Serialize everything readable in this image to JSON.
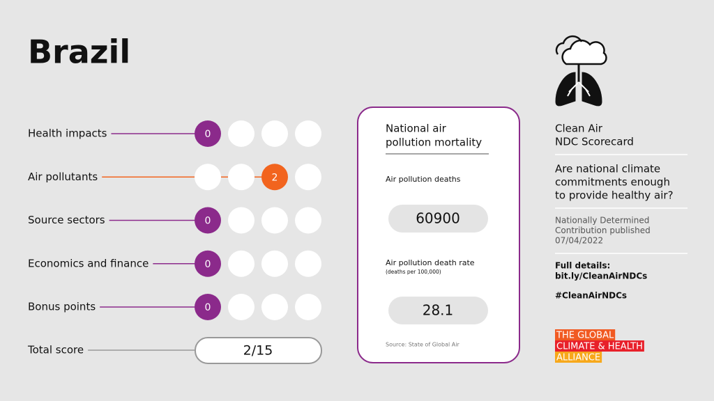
{
  "header": {
    "title": "Brazil"
  },
  "rows": [
    {
      "label": "Health impacts",
      "score": 0,
      "color": "#8b2a8b"
    },
    {
      "label": "Air pollutants",
      "score": 2,
      "color": "#f2641e"
    },
    {
      "label": "Source sectors",
      "score": 0,
      "color": "#8b2a8b"
    },
    {
      "label": "Economics and finance",
      "score": 0,
      "color": "#8b2a8b"
    },
    {
      "label": "Bonus points",
      "score": 0,
      "color": "#8b2a8b"
    }
  ],
  "total": {
    "label": "Total score",
    "value": "2/15"
  },
  "card": {
    "title": [
      "National air",
      "pollution mortality"
    ],
    "deaths_label": "Air pollution deaths",
    "deaths": 60900,
    "rate_label": "Air pollution death rate",
    "rate_unit": "(deaths per 100,000)",
    "rate": 28.1,
    "source": "Source: State of Global Air"
  },
  "sidebar": {
    "heading": [
      "Clean Air",
      "NDC Scorecard"
    ],
    "question": [
      "Are national climate",
      "commitments enough",
      "to provide healthy air?"
    ],
    "published": [
      "Nationally Determined",
      "Contribution published",
      "07/04/2022"
    ],
    "details": [
      "Full details:",
      "bit.ly/CleanAirNDCs"
    ],
    "hashtag": "#CleanAirNDCs",
    "logo": [
      "THE GLOBAL",
      "CLIMATE & HEALTH",
      "ALLIANCE"
    ]
  }
}
